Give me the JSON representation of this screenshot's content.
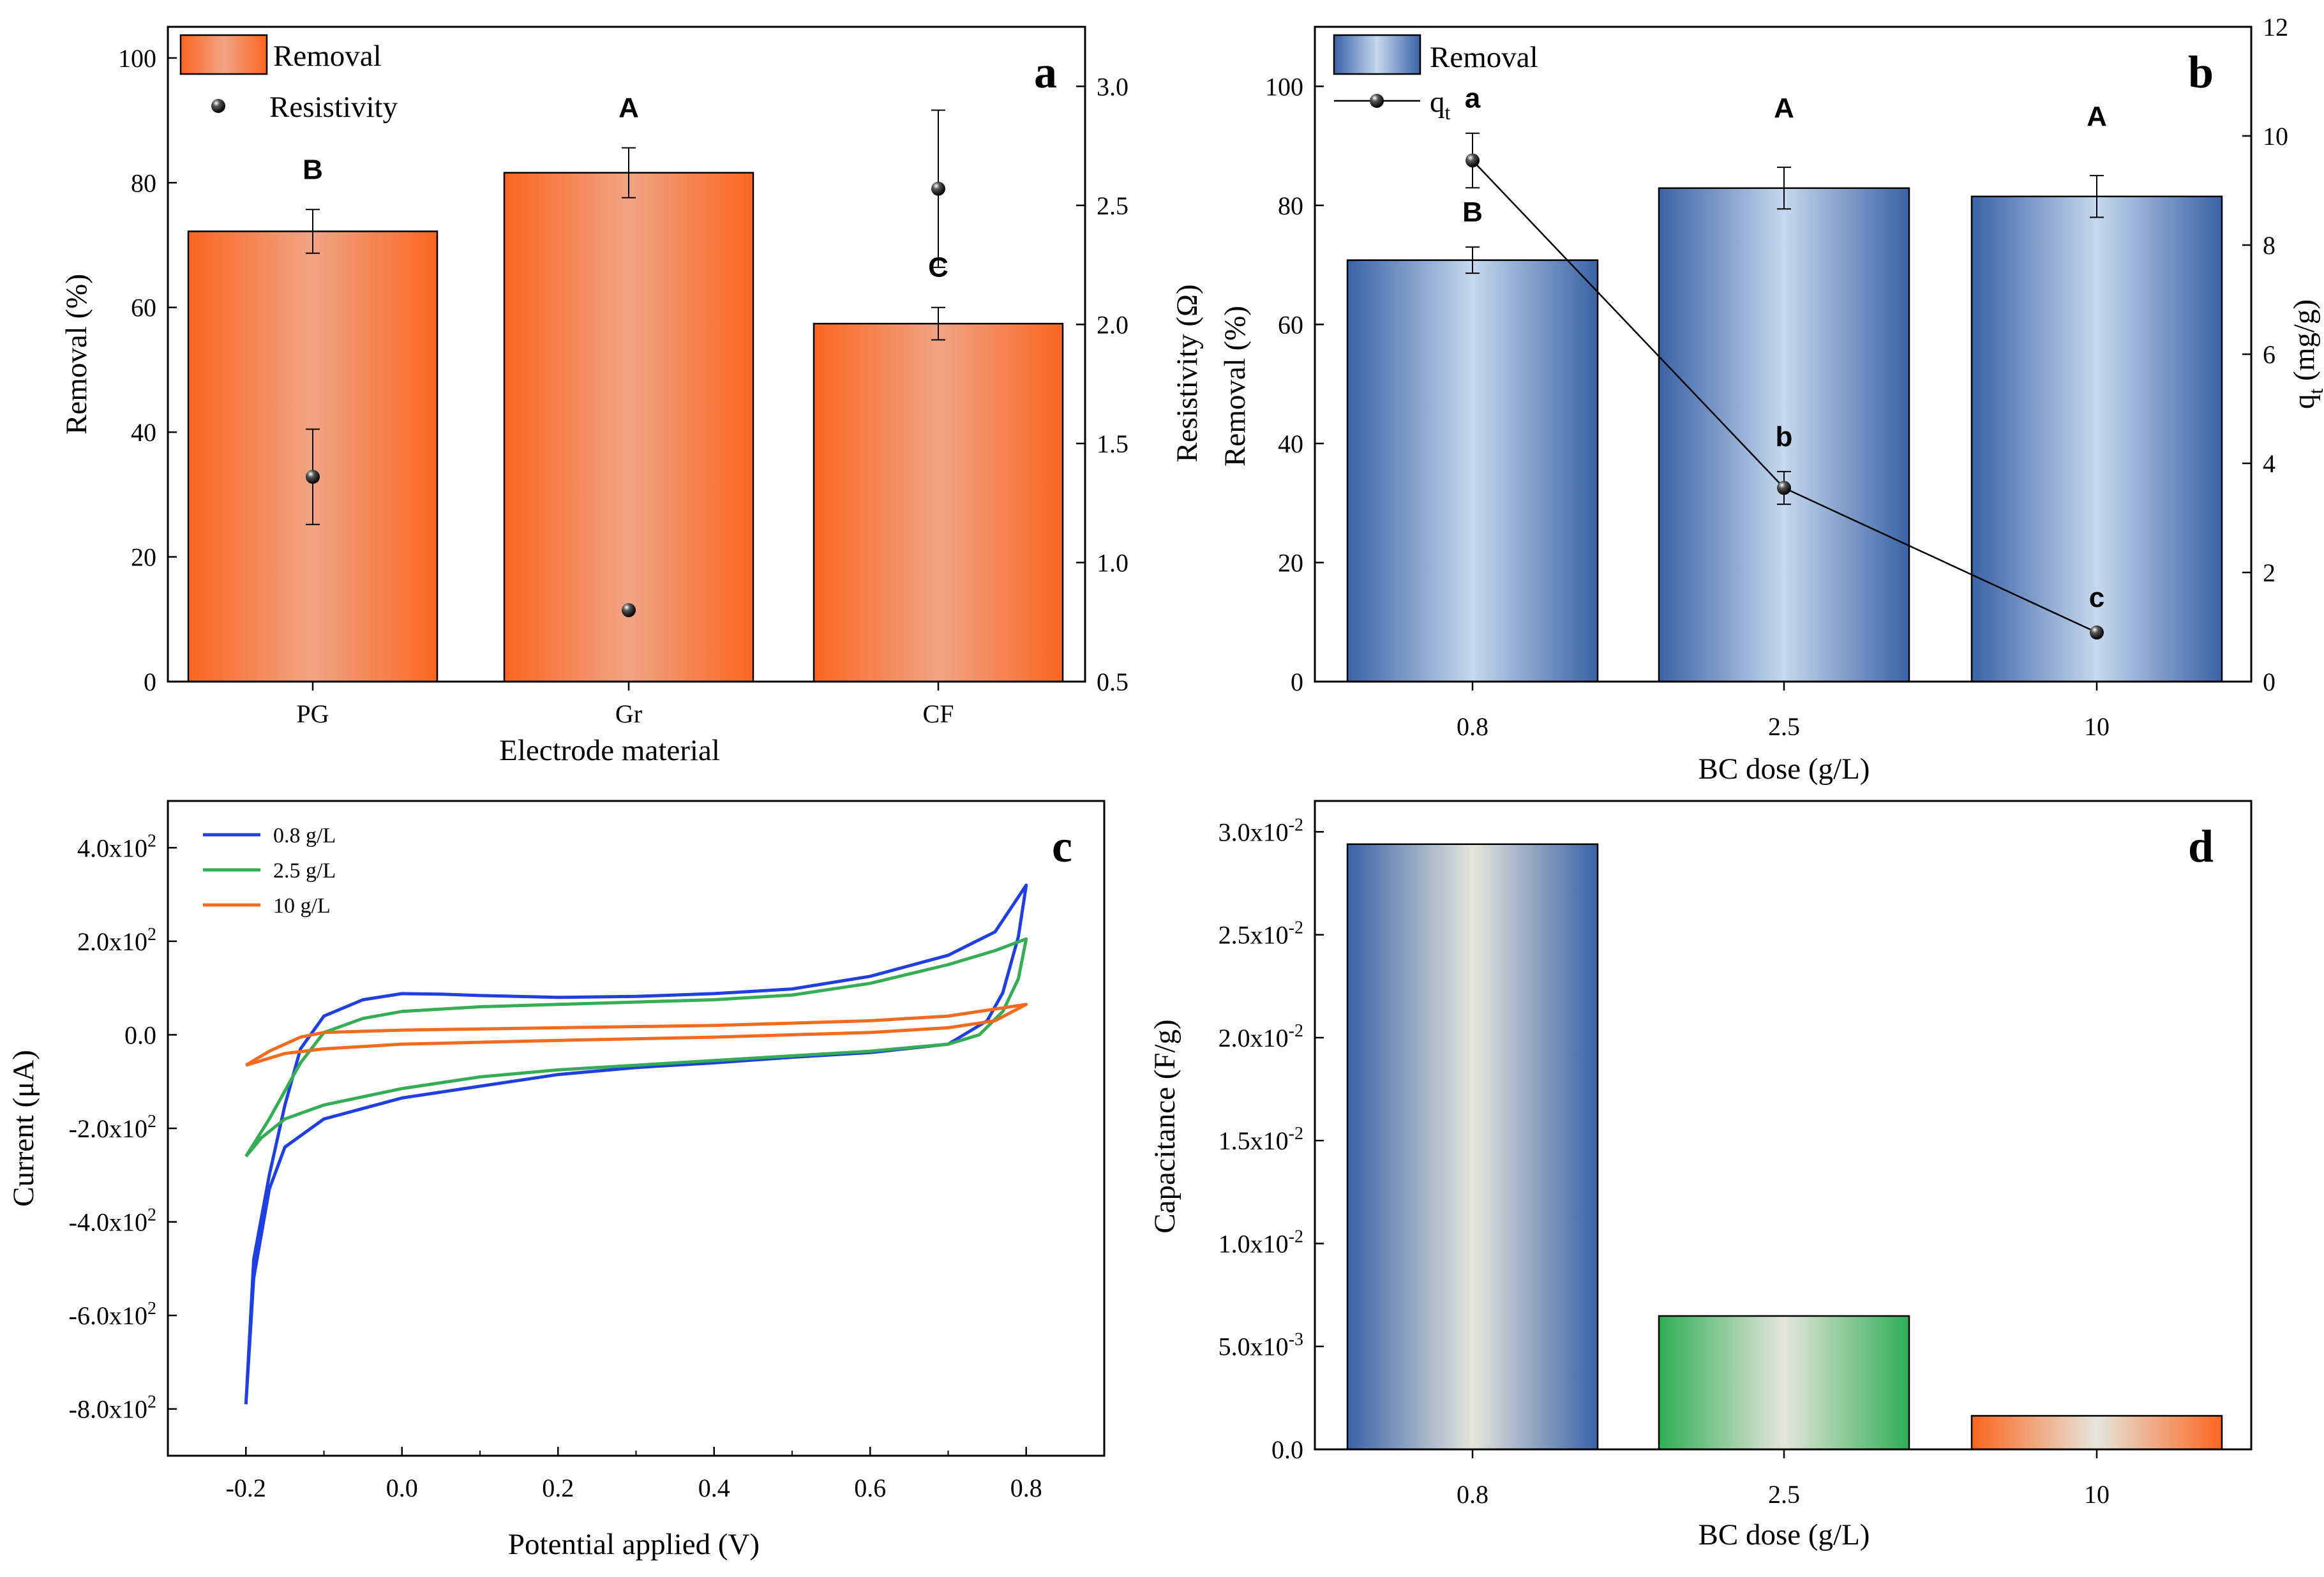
{
  "colors": {
    "orange": "#fb6620",
    "orange_light": "#f0a485",
    "blue": "#3a62a6",
    "blue_light": "#c6d8ee",
    "green": "#2fae55",
    "cream": "#e6e6dc",
    "cv_blue": "#1f3fe0",
    "cv_green": "#34ad54",
    "cv_orange": "#f46a1e"
  },
  "chart_data": [
    {
      "id": "a",
      "panel_label": "a",
      "type": "bar",
      "xlabel": "Electrode material",
      "ylabel": "Removal (%)",
      "y2label": "Resistivity (Ω)",
      "categories": [
        "PG",
        "Gr",
        "CF"
      ],
      "ylim": [
        0,
        105
      ],
      "yticks": [
        "0",
        "20",
        "40",
        "60",
        "80",
        "100"
      ],
      "y2lim": [
        0.5,
        3.25
      ],
      "y2ticks": [
        "0.5",
        "1.0",
        "1.5",
        "2.0",
        "2.5",
        "3.0"
      ],
      "series": [
        {
          "name": "Removal",
          "type": "bar",
          "values": [
            72.2,
            81.6,
            57.4
          ],
          "errors": [
            3.5,
            4.0,
            2.6
          ],
          "letters": [
            "B",
            "A",
            "C"
          ]
        },
        {
          "name": "Resistivity",
          "type": "scatter",
          "values": [
            1.36,
            0.8,
            2.57
          ],
          "errors": [
            0.2,
            0,
            0.33
          ]
        }
      ],
      "legend": [
        "Removal",
        "Resistivity"
      ]
    },
    {
      "id": "b",
      "panel_label": "b",
      "type": "bar",
      "xlabel": "BC dose (g/L)",
      "ylabel": "Removal (%)",
      "y2label": "q",
      "y2label_sub": "t",
      "y2label_unit": " (mg/g)",
      "categories": [
        "0.8",
        "2.5",
        "10"
      ],
      "ylim": [
        0,
        110
      ],
      "yticks": [
        "0",
        "20",
        "40",
        "60",
        "80",
        "100"
      ],
      "y2lim": [
        0,
        12
      ],
      "y2ticks": [
        "0",
        "2",
        "4",
        "6",
        "8",
        "10",
        "12"
      ],
      "series": [
        {
          "name": "Removal",
          "type": "bar",
          "values": [
            70.8,
            82.9,
            81.5
          ],
          "errors": [
            2.2,
            3.5,
            3.5
          ],
          "letters": [
            "B",
            "A",
            "A"
          ]
        },
        {
          "name": "qt",
          "type": "line",
          "values": [
            9.55,
            3.55,
            0.9
          ],
          "errors": [
            0.5,
            0.3,
            0
          ],
          "letters": [
            "a",
            "b",
            "c"
          ]
        }
      ],
      "legend": [
        "Removal",
        "q",
        "t"
      ]
    },
    {
      "id": "c",
      "panel_label": "c",
      "type": "line",
      "xlabel": "Potential applied (V)",
      "ylabel": "Current (μA)",
      "xlim": [
        -0.3,
        0.9
      ],
      "xticks": [
        "-0.2",
        "0.0",
        "0.2",
        "0.4",
        "0.6",
        "0.8"
      ],
      "ylim": [
        -900,
        500
      ],
      "yticks": [
        "-8.0x10",
        "-6.0x10",
        "-4.0x10",
        "-2.0x10",
        "0.0",
        "2.0x10",
        "4.0x10"
      ],
      "ytick_exp": "2",
      "series": [
        {
          "name": "0.8 g/L",
          "upper": [
            [
              -0.2,
              -790
            ],
            [
              -0.19,
              -480
            ],
            [
              -0.17,
              -300
            ],
            [
              -0.15,
              -150
            ],
            [
              -0.13,
              -30
            ],
            [
              -0.1,
              40
            ],
            [
              -0.05,
              75
            ],
            [
              0,
              88
            ],
            [
              0.05,
              87
            ],
            [
              0.1,
              84
            ],
            [
              0.2,
              80
            ],
            [
              0.3,
              82
            ],
            [
              0.4,
              88
            ],
            [
              0.5,
              98
            ],
            [
              0.6,
              125
            ],
            [
              0.7,
              170
            ],
            [
              0.76,
              220
            ],
            [
              0.8,
              320
            ]
          ],
          "lower": [
            [
              0.8,
              320
            ],
            [
              0.79,
              210
            ],
            [
              0.77,
              90
            ],
            [
              0.75,
              30
            ],
            [
              0.7,
              -20
            ],
            [
              0.6,
              -38
            ],
            [
              0.5,
              -48
            ],
            [
              0.4,
              -60
            ],
            [
              0.3,
              -70
            ],
            [
              0.2,
              -85
            ],
            [
              0.1,
              -110
            ],
            [
              0.0,
              -135
            ],
            [
              -0.1,
              -180
            ],
            [
              -0.15,
              -240
            ],
            [
              -0.17,
              -330
            ],
            [
              -0.19,
              -520
            ],
            [
              -0.2,
              -790
            ]
          ]
        },
        {
          "name": "2.5 g/L",
          "upper": [
            [
              -0.2,
              -260
            ],
            [
              -0.17,
              -180
            ],
            [
              -0.13,
              -60
            ],
            [
              -0.1,
              5
            ],
            [
              -0.05,
              35
            ],
            [
              0,
              50
            ],
            [
              0.1,
              60
            ],
            [
              0.2,
              65
            ],
            [
              0.3,
              70
            ],
            [
              0.4,
              75
            ],
            [
              0.5,
              85
            ],
            [
              0.6,
              110
            ],
            [
              0.7,
              150
            ],
            [
              0.76,
              180
            ],
            [
              0.8,
              205
            ]
          ],
          "lower": [
            [
              0.8,
              205
            ],
            [
              0.79,
              120
            ],
            [
              0.77,
              50
            ],
            [
              0.74,
              0
            ],
            [
              0.7,
              -20
            ],
            [
              0.6,
              -35
            ],
            [
              0.5,
              -45
            ],
            [
              0.4,
              -55
            ],
            [
              0.3,
              -65
            ],
            [
              0.2,
              -75
            ],
            [
              0.1,
              -90
            ],
            [
              0.0,
              -115
            ],
            [
              -0.1,
              -150
            ],
            [
              -0.15,
              -180
            ],
            [
              -0.18,
              -220
            ],
            [
              -0.2,
              -260
            ]
          ]
        },
        {
          "name": "10 g/L",
          "upper": [
            [
              -0.2,
              -65
            ],
            [
              -0.17,
              -35
            ],
            [
              -0.13,
              -5
            ],
            [
              -0.1,
              5
            ],
            [
              0,
              10
            ],
            [
              0.2,
              15
            ],
            [
              0.4,
              20
            ],
            [
              0.6,
              30
            ],
            [
              0.7,
              40
            ],
            [
              0.8,
              65
            ]
          ],
          "lower": [
            [
              0.8,
              65
            ],
            [
              0.76,
              30
            ],
            [
              0.7,
              15
            ],
            [
              0.6,
              5
            ],
            [
              0.4,
              -5
            ],
            [
              0.2,
              -12
            ],
            [
              0,
              -20
            ],
            [
              -0.1,
              -30
            ],
            [
              -0.15,
              -40
            ],
            [
              -0.2,
              -65
            ]
          ]
        }
      ]
    },
    {
      "id": "d",
      "panel_label": "d",
      "type": "bar",
      "xlabel": "BC dose (g/L)",
      "ylabel": "Capacitance (F/g)",
      "categories": [
        "0.8",
        "2.5",
        "10"
      ],
      "values": [
        0.0294,
        0.00648,
        0.00163
      ],
      "ylim": [
        0,
        0.0315
      ],
      "yticks": [
        {
          "m": "0.0",
          "e": ""
        },
        {
          "m": "5.0x10",
          "e": "-3"
        },
        {
          "m": "1.0x10",
          "e": "-2"
        },
        {
          "m": "1.5x10",
          "e": "-2"
        },
        {
          "m": "2.0x10",
          "e": "-2"
        },
        {
          "m": "2.5x10",
          "e": "-2"
        },
        {
          "m": "3.0x10",
          "e": "-2"
        }
      ]
    }
  ]
}
